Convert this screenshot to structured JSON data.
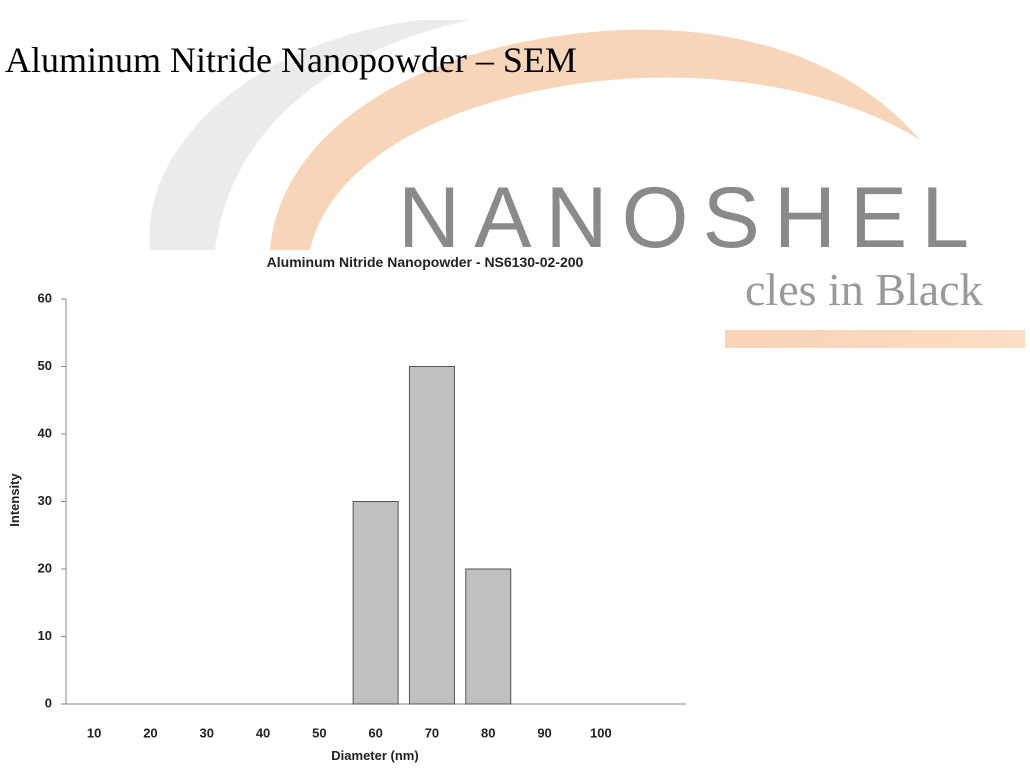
{
  "slide_title": "Aluminum Nitride Nanopowder – SEM",
  "logo": {
    "name": "NANOSHEL",
    "tagline": "cles in Black"
  },
  "chart_data": {
    "type": "bar",
    "title": "Aluminum Nitride Nanopowder - NS6130-02-200",
    "x_label": "Diameter (nm)",
    "y_label": "Intensity",
    "categories": [
      "10",
      "20",
      "30",
      "40",
      "50",
      "60",
      "70",
      "80",
      "90",
      "100"
    ],
    "values": [
      0,
      0,
      0,
      0,
      0,
      30,
      50,
      20,
      0,
      0
    ],
    "color": "#c0c0c0",
    "ylim": [
      0,
      60
    ],
    "yticks": [
      0,
      10,
      20,
      30,
      40,
      50,
      60
    ],
    "grid": false
  }
}
